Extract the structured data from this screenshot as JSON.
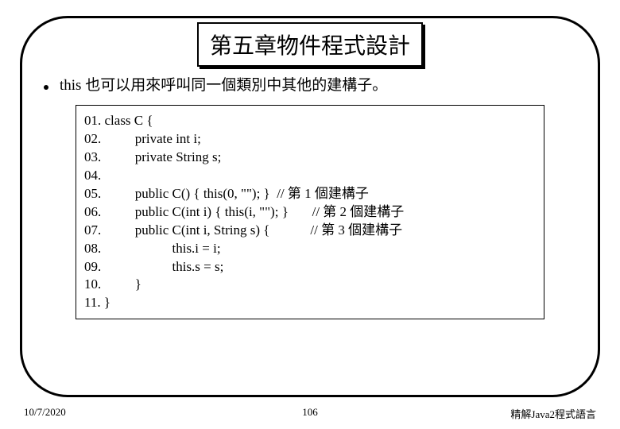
{
  "title": "第五章物件程式設計",
  "bullet": "this 也可以用來呼叫同一個類別中其他的建構子。",
  "code": {
    "lines": [
      "01. class C {",
      "02.          private int i;",
      "03.          private String s;",
      "04.",
      "05.          public C() { this(0, \"\"); }  // 第 1 個建構子",
      "06.          public C(int i) { this(i, \"\"); }       // 第 2 個建構子",
      "07.          public C(int i, String s) {            // 第 3 個建構子",
      "08.                     this.i = i;",
      "09.                     this.s = s;",
      "10.          }",
      "11. }"
    ]
  },
  "footer": {
    "date": "10/7/2020",
    "page": "106",
    "course": "精解Java2程式語言"
  }
}
